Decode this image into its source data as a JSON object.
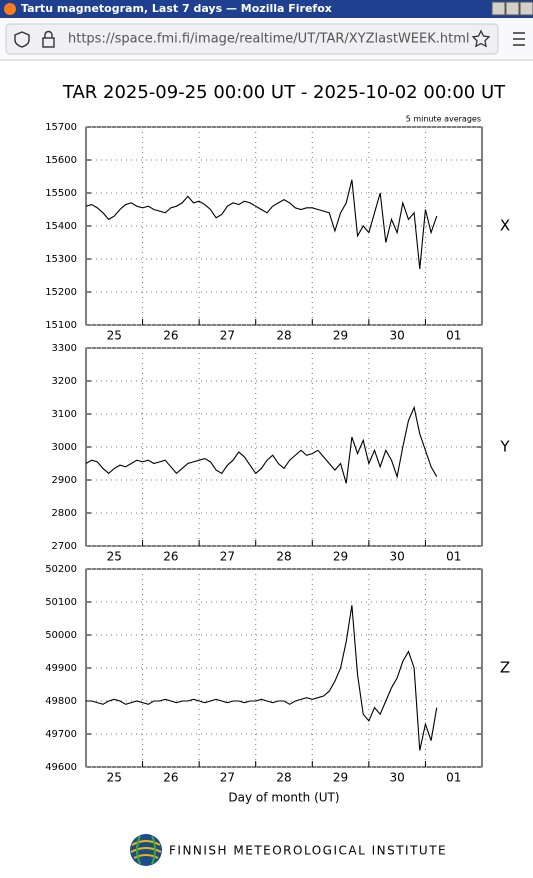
{
  "window": {
    "title": "Tartu magnetogram, Last 7 days — Mozilla Firefox"
  },
  "browser": {
    "url": "https://space.fmi.fi/image/realtime/UT/TAR/XYZlastWEEK.html"
  },
  "page": {
    "title": "TAR  2025-09-25  00:00 UT  -  2025-10-02  00:00 UT",
    "footer": "FINNISH METEOROLOGICAL INSTITUTE"
  },
  "chart_data": [
    {
      "type": "line",
      "label": "X",
      "subtitle": "5 minute averages",
      "color": "#000000",
      "xlim": [
        0,
        7
      ],
      "xticks": [
        {
          "value": 0.5,
          "label": "25"
        },
        {
          "value": 1.5,
          "label": "26"
        },
        {
          "value": 2.5,
          "label": "27"
        },
        {
          "value": 3.5,
          "label": "28"
        },
        {
          "value": 4.5,
          "label": "29"
        },
        {
          "value": 5.5,
          "label": "30"
        },
        {
          "value": 6.5,
          "label": "01"
        }
      ],
      "xgrid": [
        1,
        2,
        3,
        4,
        5,
        6
      ],
      "ylim": [
        15100,
        15700
      ],
      "yticks": [
        15100,
        15200,
        15300,
        15400,
        15500,
        15600,
        15700
      ],
      "grid": true,
      "x": [
        0,
        0.1,
        0.2,
        0.3,
        0.4,
        0.5,
        0.6,
        0.7,
        0.8,
        0.9,
        1,
        1.1,
        1.2,
        1.3,
        1.4,
        1.5,
        1.6,
        1.7,
        1.8,
        1.9,
        2,
        2.1,
        2.2,
        2.3,
        2.4,
        2.5,
        2.6,
        2.7,
        2.8,
        2.9,
        3,
        3.1,
        3.2,
        3.3,
        3.4,
        3.5,
        3.6,
        3.7,
        3.8,
        3.9,
        4,
        4.1,
        4.2,
        4.3,
        4.4,
        4.5,
        4.6,
        4.7,
        4.8,
        4.9,
        5,
        5.1,
        5.2,
        5.3,
        5.4,
        5.5,
        5.6,
        5.7,
        5.8,
        5.9,
        6,
        6.1,
        6.2
      ],
      "values": [
        15460,
        15465,
        15455,
        15440,
        15420,
        15430,
        15450,
        15465,
        15470,
        15460,
        15455,
        15460,
        15450,
        15445,
        15440,
        15455,
        15460,
        15470,
        15490,
        15470,
        15475,
        15465,
        15450,
        15425,
        15435,
        15460,
        15470,
        15465,
        15475,
        15470,
        15460,
        15450,
        15440,
        15460,
        15470,
        15480,
        15470,
        15455,
        15450,
        15455,
        15455,
        15450,
        15445,
        15440,
        15385,
        15440,
        15470,
        15540,
        15370,
        15400,
        15380,
        15440,
        15500,
        15350,
        15420,
        15380,
        15470,
        15420,
        15440,
        15270,
        15450,
        15380,
        15430
      ]
    },
    {
      "type": "line",
      "label": "Y",
      "color": "#000000",
      "xlim": [
        0,
        7
      ],
      "xticks": [
        {
          "value": 0.5,
          "label": "25"
        },
        {
          "value": 1.5,
          "label": "26"
        },
        {
          "value": 2.5,
          "label": "27"
        },
        {
          "value": 3.5,
          "label": "28"
        },
        {
          "value": 4.5,
          "label": "29"
        },
        {
          "value": 5.5,
          "label": "30"
        },
        {
          "value": 6.5,
          "label": "01"
        }
      ],
      "xgrid": [
        1,
        2,
        3,
        4,
        5,
        6
      ],
      "ylim": [
        2700,
        3300
      ],
      "yticks": [
        2700,
        2800,
        2900,
        3000,
        3100,
        3200,
        3300
      ],
      "grid": true,
      "x": [
        0,
        0.1,
        0.2,
        0.3,
        0.4,
        0.5,
        0.6,
        0.7,
        0.8,
        0.9,
        1,
        1.1,
        1.2,
        1.3,
        1.4,
        1.5,
        1.6,
        1.7,
        1.8,
        1.9,
        2,
        2.1,
        2.2,
        2.3,
        2.4,
        2.5,
        2.6,
        2.7,
        2.8,
        2.9,
        3,
        3.1,
        3.2,
        3.3,
        3.4,
        3.5,
        3.6,
        3.7,
        3.8,
        3.9,
        4,
        4.1,
        4.2,
        4.3,
        4.4,
        4.5,
        4.6,
        4.7,
        4.8,
        4.9,
        5,
        5.1,
        5.2,
        5.3,
        5.4,
        5.5,
        5.6,
        5.7,
        5.8,
        5.9,
        6,
        6.1,
        6.2
      ],
      "values": [
        2950,
        2960,
        2955,
        2935,
        2920,
        2935,
        2945,
        2940,
        2950,
        2960,
        2955,
        2960,
        2950,
        2955,
        2960,
        2940,
        2920,
        2935,
        2950,
        2955,
        2960,
        2965,
        2955,
        2930,
        2920,
        2945,
        2960,
        2985,
        2970,
        2945,
        2920,
        2935,
        2960,
        2975,
        2950,
        2935,
        2960,
        2975,
        2990,
        2975,
        2980,
        2990,
        2970,
        2950,
        2930,
        2950,
        2890,
        3030,
        2980,
        3020,
        2950,
        2990,
        2940,
        2990,
        2960,
        2910,
        3000,
        3080,
        3120,
        3040,
        2990,
        2940,
        2910
      ]
    },
    {
      "type": "line",
      "label": "Z",
      "xlabel": "Day of month (UT)",
      "color": "#000000",
      "xlim": [
        0,
        7
      ],
      "xticks": [
        {
          "value": 0.5,
          "label": "25"
        },
        {
          "value": 1.5,
          "label": "26"
        },
        {
          "value": 2.5,
          "label": "27"
        },
        {
          "value": 3.5,
          "label": "28"
        },
        {
          "value": 4.5,
          "label": "29"
        },
        {
          "value": 5.5,
          "label": "30"
        },
        {
          "value": 6.5,
          "label": "01"
        }
      ],
      "xgrid": [
        1,
        2,
        3,
        4,
        5,
        6
      ],
      "ylim": [
        49600,
        50200
      ],
      "yticks": [
        49600,
        49700,
        49800,
        49900,
        50000,
        50100,
        50200
      ],
      "grid": true,
      "x": [
        0,
        0.1,
        0.2,
        0.3,
        0.4,
        0.5,
        0.6,
        0.7,
        0.8,
        0.9,
        1,
        1.1,
        1.2,
        1.3,
        1.4,
        1.5,
        1.6,
        1.7,
        1.8,
        1.9,
        2,
        2.1,
        2.2,
        2.3,
        2.4,
        2.5,
        2.6,
        2.7,
        2.8,
        2.9,
        3,
        3.1,
        3.2,
        3.3,
        3.4,
        3.5,
        3.6,
        3.7,
        3.8,
        3.9,
        4,
        4.1,
        4.2,
        4.3,
        4.4,
        4.5,
        4.6,
        4.7,
        4.8,
        4.9,
        5,
        5.1,
        5.2,
        5.3,
        5.4,
        5.5,
        5.6,
        5.7,
        5.8,
        5.9,
        6,
        6.1,
        6.2
      ],
      "values": [
        49800,
        49800,
        49795,
        49790,
        49800,
        49805,
        49800,
        49790,
        49795,
        49800,
        49795,
        49790,
        49800,
        49800,
        49805,
        49800,
        49795,
        49800,
        49800,
        49805,
        49800,
        49795,
        49800,
        49805,
        49800,
        49795,
        49800,
        49800,
        49795,
        49800,
        49800,
        49805,
        49800,
        49795,
        49800,
        49800,
        49790,
        49800,
        49805,
        49810,
        49805,
        49810,
        49815,
        49830,
        49860,
        49900,
        49980,
        50090,
        49880,
        49760,
        49740,
        49780,
        49760,
        49800,
        49840,
        49870,
        49920,
        49950,
        49900,
        49650,
        49730,
        49680,
        49780
      ]
    }
  ]
}
